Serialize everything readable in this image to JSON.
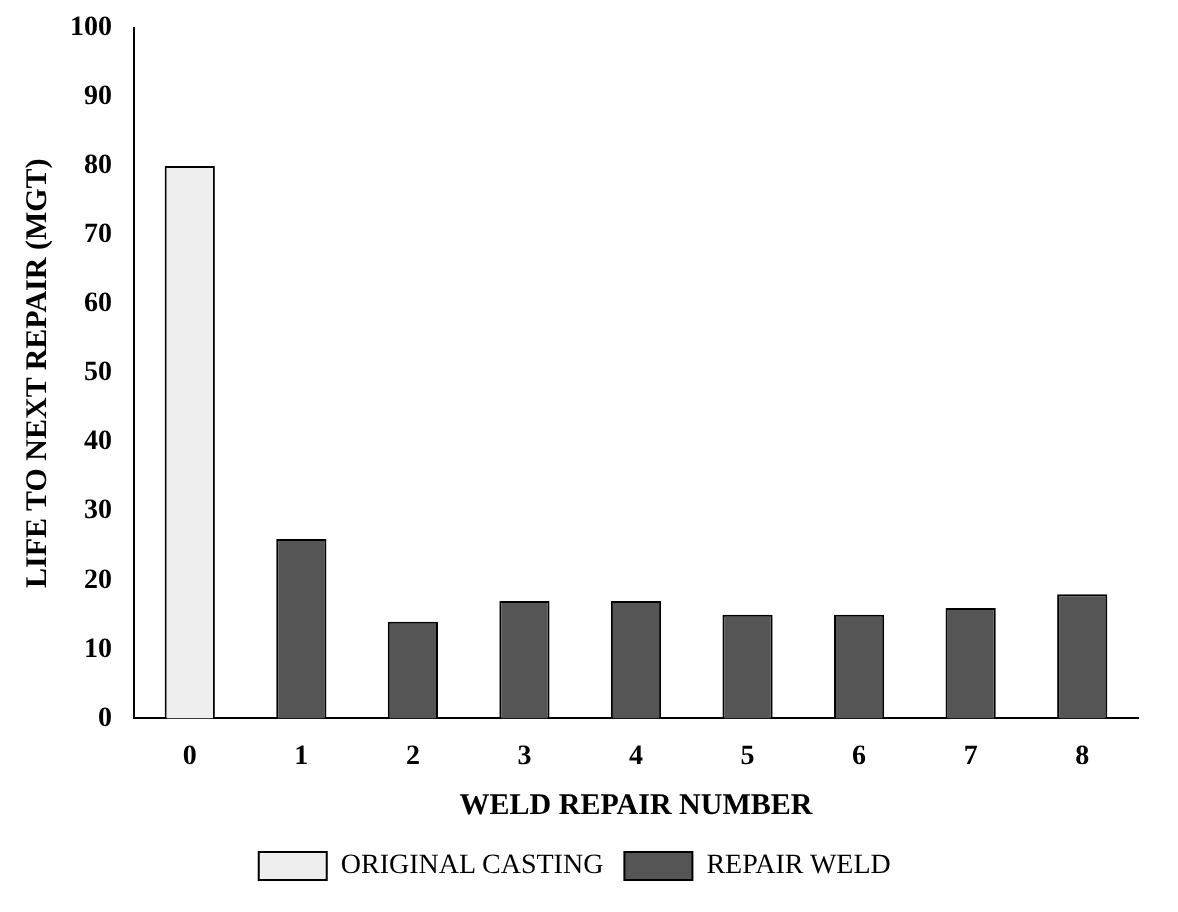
{
  "chart_data": {
    "type": "bar",
    "xlabel": "WELD REPAIR NUMBER",
    "ylabel": "LIFE TO NEXT REPAIR (MGT)",
    "categories": [
      "0",
      "1",
      "2",
      "3",
      "4",
      "5",
      "6",
      "7",
      "8"
    ],
    "series": [
      {
        "name": "ORIGINAL CASTING",
        "color": "#eeeeee",
        "values": [
          80,
          null,
          null,
          null,
          null,
          null,
          null,
          null,
          null
        ]
      },
      {
        "name": "REPAIR WELD",
        "color": "#555555",
        "values": [
          null,
          26,
          14,
          17,
          17,
          15,
          15,
          16,
          18
        ]
      }
    ],
    "ylim": [
      0,
      100
    ],
    "yticks": [
      0,
      10,
      20,
      30,
      40,
      50,
      60,
      70,
      80,
      90,
      100
    ],
    "grid": false,
    "legend": "bottom"
  }
}
